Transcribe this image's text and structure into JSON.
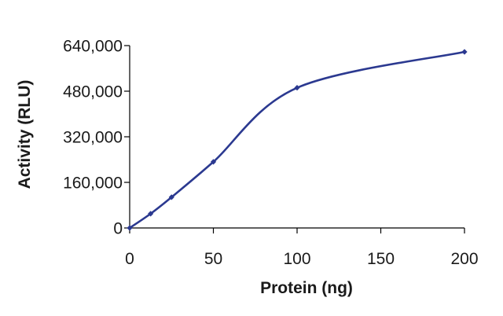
{
  "chart_data": {
    "type": "line",
    "title": "",
    "xlabel": "Protein (ng)",
    "ylabel": "Activity (RLU)",
    "xlim": [
      0,
      200
    ],
    "ylim": [
      0,
      640000
    ],
    "x_ticks": [
      0,
      50,
      100,
      150,
      200
    ],
    "x_tick_labels": [
      "0",
      "50",
      "100",
      "150",
      "200"
    ],
    "y_ticks": [
      0,
      160000,
      320000,
      480000,
      640000
    ],
    "y_tick_labels": [
      "0",
      "160,000",
      "320,000",
      "480,000",
      "640,000"
    ],
    "grid": false,
    "legend": "none",
    "series": [
      {
        "color": "#2B3990",
        "smooth": true,
        "x": [
          0,
          12.5,
          25,
          50,
          100,
          200
        ],
        "y": [
          0,
          50000,
          108000,
          232000,
          492000,
          618000
        ]
      }
    ]
  }
}
